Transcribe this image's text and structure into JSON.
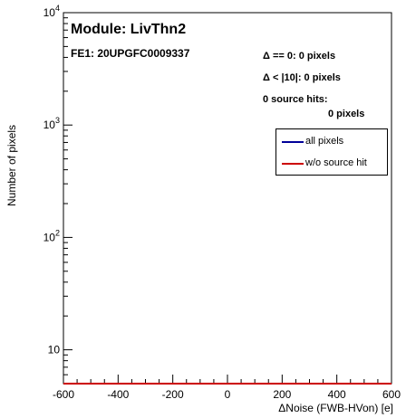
{
  "chart_data": {
    "type": "line",
    "title": "Module: LivThn2",
    "subtitle": "FE1: 20UPGFC0009337",
    "xlabel": "ΔNoise (FWB-HVon) [e]",
    "ylabel": "Number of pixels",
    "xlim": [
      -600,
      600
    ],
    "ylim": [
      5,
      10000
    ],
    "y_scale": "log",
    "grid": false,
    "x_ticks": [
      "-600",
      "-400",
      "-200",
      "0",
      "200",
      "400",
      "600"
    ],
    "y_tick_values": [
      10,
      100,
      1000,
      10000
    ],
    "legend_position": "top-right",
    "series": [
      {
        "name": "all pixels",
        "color": "#000099",
        "x": [
          -600,
          600
        ],
        "y": [
          5,
          5
        ]
      },
      {
        "name": "w/o source hit",
        "color": "#cc0000",
        "x": [
          -600,
          600
        ],
        "y": [
          5,
          5
        ]
      }
    ],
    "annotations": {
      "delta_zero": "Δ == 0: 0 pixels",
      "delta_lt10": "Δ < |10|: 0 pixels",
      "source_hits_label": "0 source hits:",
      "source_hits_value": "0 pixels"
    }
  }
}
